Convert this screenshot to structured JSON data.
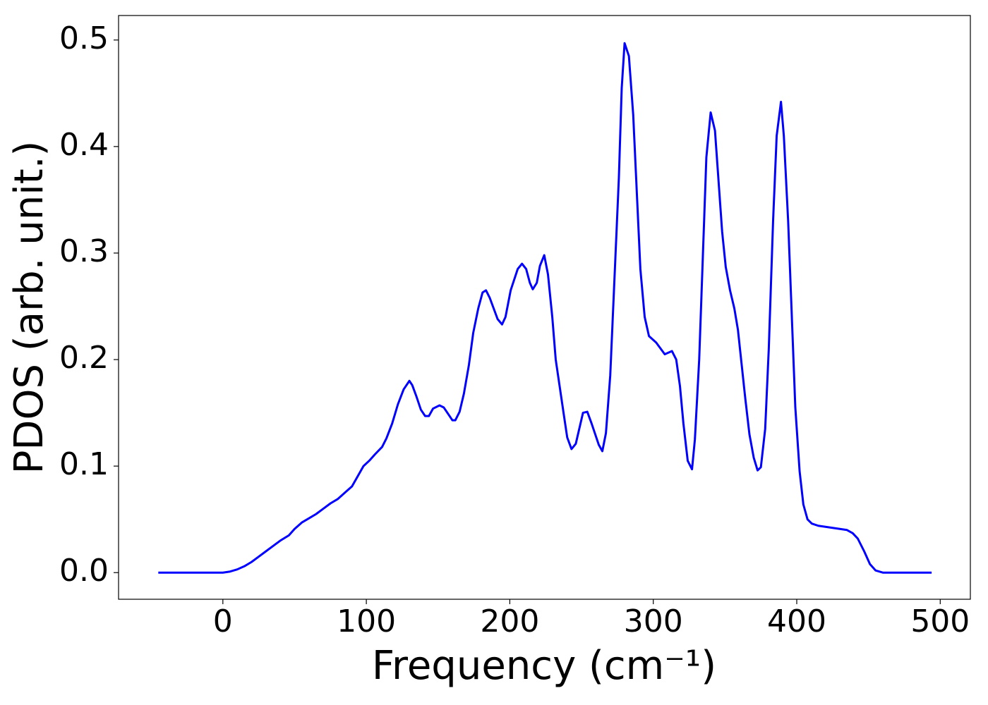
{
  "chart_data": {
    "type": "line",
    "x_label": "Frequency (cm⁻¹)",
    "y_label": "PDOS (arb. unit.)",
    "x": [
      -45,
      0,
      5,
      10,
      15,
      20,
      25,
      30,
      35,
      40,
      46,
      50,
      55,
      60,
      65,
      70,
      75,
      80,
      85,
      90,
      98,
      102,
      106,
      111,
      114,
      118,
      122,
      126,
      130,
      132,
      135,
      138,
      141,
      143.6,
      146.5,
      151,
      154,
      157,
      160,
      162,
      165,
      168,
      171.5,
      174.5,
      178,
      181,
      183.4,
      186,
      191.5,
      194.6,
      197,
      200.6,
      205.5,
      208.5,
      211.4,
      214,
      216,
      218.8,
      221,
      224,
      226.6,
      229.6,
      232,
      238,
      240,
      243,
      246,
      251,
      254,
      257,
      262,
      264.5,
      267,
      270,
      276,
      278,
      280,
      283,
      286,
      291,
      294,
      297,
      302,
      308,
      313,
      316,
      318.6,
      321,
      324,
      327,
      329,
      332,
      337,
      340,
      343,
      348,
      350.5,
      353.5,
      356.5,
      359,
      364,
      367,
      370,
      372.7,
      375,
      378,
      380.5,
      383.5,
      386,
      389,
      391,
      394,
      399,
      402,
      404.6,
      407.5,
      410.5,
      415,
      435,
      439,
      442.5,
      447,
      451,
      455,
      460,
      494
    ],
    "series": [
      {
        "name": "PDOS",
        "color": "#0000ff",
        "values": [
          0,
          0,
          0.001,
          0.003,
          0.006,
          0.01,
          0.015,
          0.02,
          0.025,
          0.03,
          0.035,
          0.041,
          0.047,
          0.051,
          0.055,
          0.06,
          0.065,
          0.069,
          0.075,
          0.081,
          0.1,
          0.105,
          0.111,
          0.118,
          0.126,
          0.14,
          0.158,
          0.172,
          0.18,
          0.176,
          0.165,
          0.153,
          0.147,
          0.147,
          0.154,
          0.157,
          0.155,
          0.149,
          0.143,
          0.143,
          0.151,
          0.168,
          0.195,
          0.225,
          0.248,
          0.263,
          0.265,
          0.258,
          0.238,
          0.233,
          0.24,
          0.265,
          0.285,
          0.29,
          0.285,
          0.272,
          0.266,
          0.272,
          0.288,
          0.298,
          0.28,
          0.24,
          0.2,
          0.145,
          0.127,
          0.116,
          0.121,
          0.15,
          0.151,
          0.14,
          0.12,
          0.114,
          0.131,
          0.185,
          0.37,
          0.455,
          0.497,
          0.485,
          0.43,
          0.285,
          0.24,
          0.222,
          0.216,
          0.205,
          0.208,
          0.2,
          0.175,
          0.14,
          0.105,
          0.097,
          0.125,
          0.2,
          0.39,
          0.432,
          0.415,
          0.32,
          0.287,
          0.265,
          0.248,
          0.228,
          0.165,
          0.13,
          0.108,
          0.096,
          0.099,
          0.135,
          0.21,
          0.33,
          0.41,
          0.442,
          0.41,
          0.33,
          0.155,
          0.095,
          0.064,
          0.05,
          0.046,
          0.044,
          0.04,
          0.037,
          0.032,
          0.02,
          0.008,
          0.002,
          0,
          0
        ]
      }
    ],
    "xlim": [
      -72.7,
      521
    ],
    "ylim": [
      -0.025,
      0.523
    ],
    "xticks": [
      0,
      100,
      200,
      300,
      400,
      500
    ],
    "yticks": [
      {
        "value": 0,
        "label": "0.0"
      },
      0.1,
      0.2,
      0.3,
      0.4,
      0.5
    ]
  }
}
